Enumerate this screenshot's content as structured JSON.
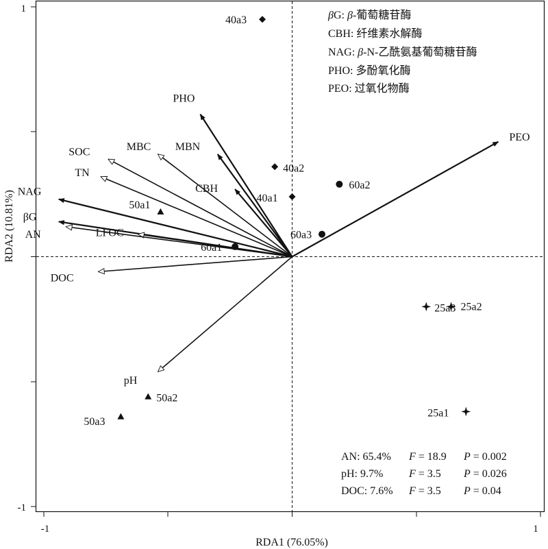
{
  "chart_data": {
    "type": "scatter",
    "subtype": "rda-biplot",
    "xlabel": "RDA1 (76.05%)",
    "ylabel": "RDA2 (10.81%)",
    "xlim": [
      -1,
      1
    ],
    "ylim": [
      -1,
      1
    ],
    "x_tick_labels": [
      "-1",
      "1"
    ],
    "y_tick_labels": [
      "1",
      "-1"
    ],
    "reference_lines": "dashed lines at x = 0 and y = 0",
    "legend_lines": [
      {
        "text": "βG: β-葡萄糖苷酶"
      },
      {
        "text": "CBH: 纤维素水解酶"
      },
      {
        "text": "NAG: β-N-乙酰氨基葡萄糖苷酶"
      },
      {
        "text": "PHO: 多酚氧化酶"
      },
      {
        "text": "PEO: 过氧化物酶"
      }
    ],
    "response_arrows": [
      {
        "name": "PHO",
        "x": -0.37,
        "y": 0.57
      },
      {
        "name": "PEO",
        "x": 0.83,
        "y": 0.46
      },
      {
        "name": "MBN",
        "x": -0.3,
        "y": 0.41
      },
      {
        "name": "CBH",
        "x": -0.23,
        "y": 0.27
      },
      {
        "name": "NAG",
        "x": -0.94,
        "y": 0.23
      },
      {
        "name": "βG",
        "x": -0.94,
        "y": 0.14
      }
    ],
    "explanatory_arrows": [
      {
        "name": "SOC",
        "x": -0.74,
        "y": 0.39
      },
      {
        "name": "MBC",
        "x": -0.54,
        "y": 0.41
      },
      {
        "name": "TN",
        "x": -0.77,
        "y": 0.32
      },
      {
        "name": "LFOC",
        "x": -0.62,
        "y": 0.09
      },
      {
        "name": "AN",
        "x": -0.91,
        "y": 0.12
      },
      {
        "name": "DOC",
        "x": -0.78,
        "y": -0.06
      },
      {
        "name": "pH",
        "x": -0.54,
        "y": -0.46
      }
    ],
    "sample_points": [
      {
        "name": "40a3",
        "x": -0.12,
        "y": 0.95,
        "group": "40"
      },
      {
        "name": "40a2",
        "x": -0.07,
        "y": 0.36,
        "group": "40"
      },
      {
        "name": "40a1",
        "x": 0.0,
        "y": 0.24,
        "group": "40"
      },
      {
        "name": "60a2",
        "x": 0.19,
        "y": 0.29,
        "group": "60"
      },
      {
        "name": "60a3",
        "x": 0.12,
        "y": 0.09,
        "group": "60"
      },
      {
        "name": "60a1",
        "x": -0.23,
        "y": 0.04,
        "group": "60"
      },
      {
        "name": "50a1",
        "x": -0.53,
        "y": 0.18,
        "group": "50"
      },
      {
        "name": "50a2",
        "x": -0.58,
        "y": -0.56,
        "group": "50"
      },
      {
        "name": "50a3",
        "x": -0.69,
        "y": -0.64,
        "group": "50"
      },
      {
        "name": "25a2",
        "x": 0.64,
        "y": -0.2,
        "group": "25"
      },
      {
        "name": "25a3",
        "x": 0.54,
        "y": -0.2,
        "group": "25"
      },
      {
        "name": "25a1",
        "x": 0.7,
        "y": -0.62,
        "group": "25"
      }
    ],
    "stats_lines": [
      {
        "var": "AN: 65.4%",
        "f_label": "F",
        "f_value": "= 18.9",
        "p_label": "P",
        "p_value": "= 0.002"
      },
      {
        "var": "pH: 9.7%",
        "f_label": "F",
        "f_value": "= 3.5",
        "p_label": "P",
        "p_value": "= 0.026"
      },
      {
        "var": "DOC: 7.6%",
        "f_label": "F",
        "f_value": "= 3.5",
        "p_label": "P",
        "p_value": "= 0.04"
      }
    ]
  }
}
